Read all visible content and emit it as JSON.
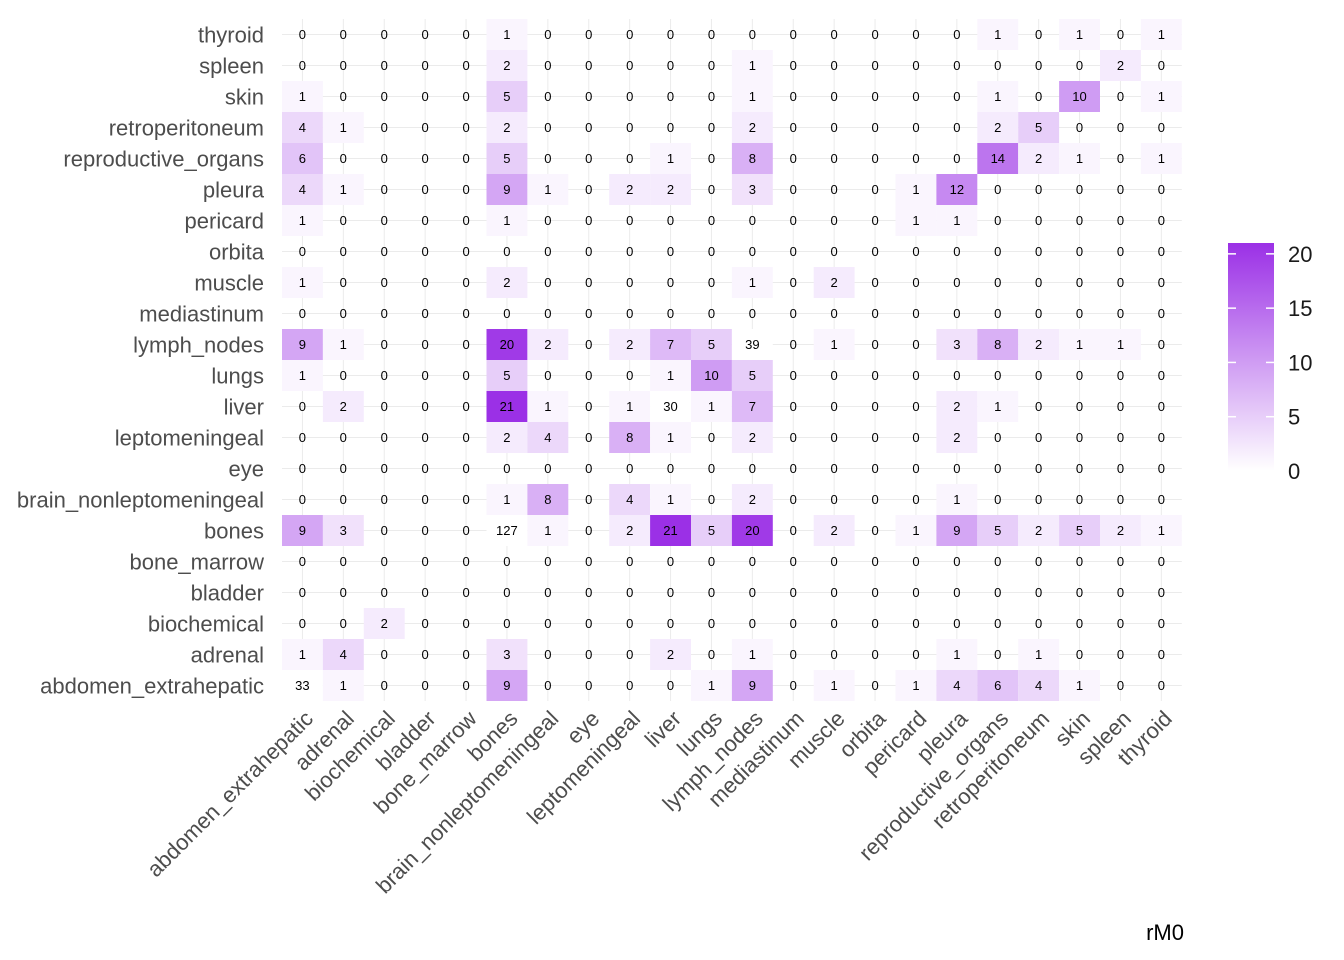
{
  "chart_data": {
    "type": "heatmap",
    "title": "",
    "xlabel": "",
    "ylabel": "",
    "caption": "rM0",
    "x_categories": [
      "abdomen_extrahepatic",
      "adrenal",
      "biochemical",
      "bladder",
      "bone_marrow",
      "bones",
      "brain_nonleptomeningeal",
      "eye",
      "leptomeningeal",
      "liver",
      "lungs",
      "lymph_nodes",
      "mediastinum",
      "muscle",
      "orbita",
      "pericard",
      "pleura",
      "reproductive_organs",
      "retroperitoneum",
      "skin",
      "spleen",
      "thyroid"
    ],
    "y_categories": [
      "abdomen_extrahepatic",
      "adrenal",
      "biochemical",
      "bladder",
      "bone_marrow",
      "bones",
      "brain_nonleptomeningeal",
      "eye",
      "leptomeningeal",
      "liver",
      "lungs",
      "lymph_nodes",
      "mediastinum",
      "muscle",
      "orbita",
      "pericard",
      "pleura",
      "reproductive_organs",
      "retroperitoneum",
      "skin",
      "spleen",
      "thyroid"
    ],
    "values": [
      [
        33,
        1,
        0,
        0,
        0,
        9,
        0,
        0,
        0,
        0,
        1,
        9,
        0,
        1,
        0,
        1,
        4,
        6,
        4,
        1,
        0,
        0
      ],
      [
        1,
        4,
        0,
        0,
        0,
        3,
        0,
        0,
        0,
        2,
        0,
        1,
        0,
        0,
        0,
        0,
        1,
        0,
        1,
        0,
        0,
        0
      ],
      [
        0,
        0,
        2,
        0,
        0,
        0,
        0,
        0,
        0,
        0,
        0,
        0,
        0,
        0,
        0,
        0,
        0,
        0,
        0,
        0,
        0,
        0
      ],
      [
        0,
        0,
        0,
        0,
        0,
        0,
        0,
        0,
        0,
        0,
        0,
        0,
        0,
        0,
        0,
        0,
        0,
        0,
        0,
        0,
        0,
        0
      ],
      [
        0,
        0,
        0,
        0,
        0,
        0,
        0,
        0,
        0,
        0,
        0,
        0,
        0,
        0,
        0,
        0,
        0,
        0,
        0,
        0,
        0,
        0
      ],
      [
        9,
        3,
        0,
        0,
        0,
        127,
        1,
        0,
        2,
        21,
        5,
        20,
        0,
        2,
        0,
        1,
        9,
        5,
        2,
        5,
        2,
        1
      ],
      [
        0,
        0,
        0,
        0,
        0,
        1,
        8,
        0,
        4,
        1,
        0,
        2,
        0,
        0,
        0,
        0,
        1,
        0,
        0,
        0,
        0,
        0
      ],
      [
        0,
        0,
        0,
        0,
        0,
        0,
        0,
        0,
        0,
        0,
        0,
        0,
        0,
        0,
        0,
        0,
        0,
        0,
        0,
        0,
        0,
        0
      ],
      [
        0,
        0,
        0,
        0,
        0,
        2,
        4,
        0,
        8,
        1,
        0,
        2,
        0,
        0,
        0,
        0,
        2,
        0,
        0,
        0,
        0,
        0
      ],
      [
        0,
        2,
        0,
        0,
        0,
        21,
        1,
        0,
        1,
        30,
        1,
        7,
        0,
        0,
        0,
        0,
        2,
        1,
        0,
        0,
        0,
        0
      ],
      [
        1,
        0,
        0,
        0,
        0,
        5,
        0,
        0,
        0,
        1,
        10,
        5,
        0,
        0,
        0,
        0,
        0,
        0,
        0,
        0,
        0,
        0
      ],
      [
        9,
        1,
        0,
        0,
        0,
        20,
        2,
        0,
        2,
        7,
        5,
        39,
        0,
        1,
        0,
        0,
        3,
        8,
        2,
        1,
        1,
        0
      ],
      [
        0,
        0,
        0,
        0,
        0,
        0,
        0,
        0,
        0,
        0,
        0,
        0,
        0,
        0,
        0,
        0,
        0,
        0,
        0,
        0,
        0,
        0
      ],
      [
        1,
        0,
        0,
        0,
        0,
        2,
        0,
        0,
        0,
        0,
        0,
        1,
        0,
        2,
        0,
        0,
        0,
        0,
        0,
        0,
        0,
        0
      ],
      [
        0,
        0,
        0,
        0,
        0,
        0,
        0,
        0,
        0,
        0,
        0,
        0,
        0,
        0,
        0,
        0,
        0,
        0,
        0,
        0,
        0,
        0
      ],
      [
        1,
        0,
        0,
        0,
        0,
        1,
        0,
        0,
        0,
        0,
        0,
        0,
        0,
        0,
        0,
        1,
        1,
        0,
        0,
        0,
        0,
        0
      ],
      [
        4,
        1,
        0,
        0,
        0,
        9,
        1,
        0,
        2,
        2,
        0,
        3,
        0,
        0,
        0,
        1,
        12,
        0,
        0,
        0,
        0,
        0
      ],
      [
        6,
        0,
        0,
        0,
        0,
        5,
        0,
        0,
        0,
        1,
        0,
        8,
        0,
        0,
        0,
        0,
        0,
        14,
        2,
        1,
        0,
        1
      ],
      [
        4,
        1,
        0,
        0,
        0,
        2,
        0,
        0,
        0,
        0,
        0,
        2,
        0,
        0,
        0,
        0,
        0,
        2,
        5,
        0,
        0,
        0
      ],
      [
        1,
        0,
        0,
        0,
        0,
        5,
        0,
        0,
        0,
        0,
        0,
        1,
        0,
        0,
        0,
        0,
        0,
        1,
        0,
        10,
        0,
        1
      ],
      [
        0,
        0,
        0,
        0,
        0,
        2,
        0,
        0,
        0,
        0,
        0,
        1,
        0,
        0,
        0,
        0,
        0,
        0,
        0,
        0,
        2,
        0
      ],
      [
        0,
        0,
        0,
        0,
        0,
        1,
        0,
        0,
        0,
        0,
        0,
        0,
        0,
        0,
        0,
        0,
        0,
        1,
        0,
        1,
        0,
        1
      ]
    ],
    "color_scale": {
      "low": "#ffffff",
      "high": "#9b30e6",
      "limits": [
        0,
        21
      ],
      "na_value": "#ffffff"
    },
    "legend": {
      "position": "right",
      "ticks": [
        0,
        5,
        10,
        15,
        20
      ]
    },
    "grid": true
  }
}
